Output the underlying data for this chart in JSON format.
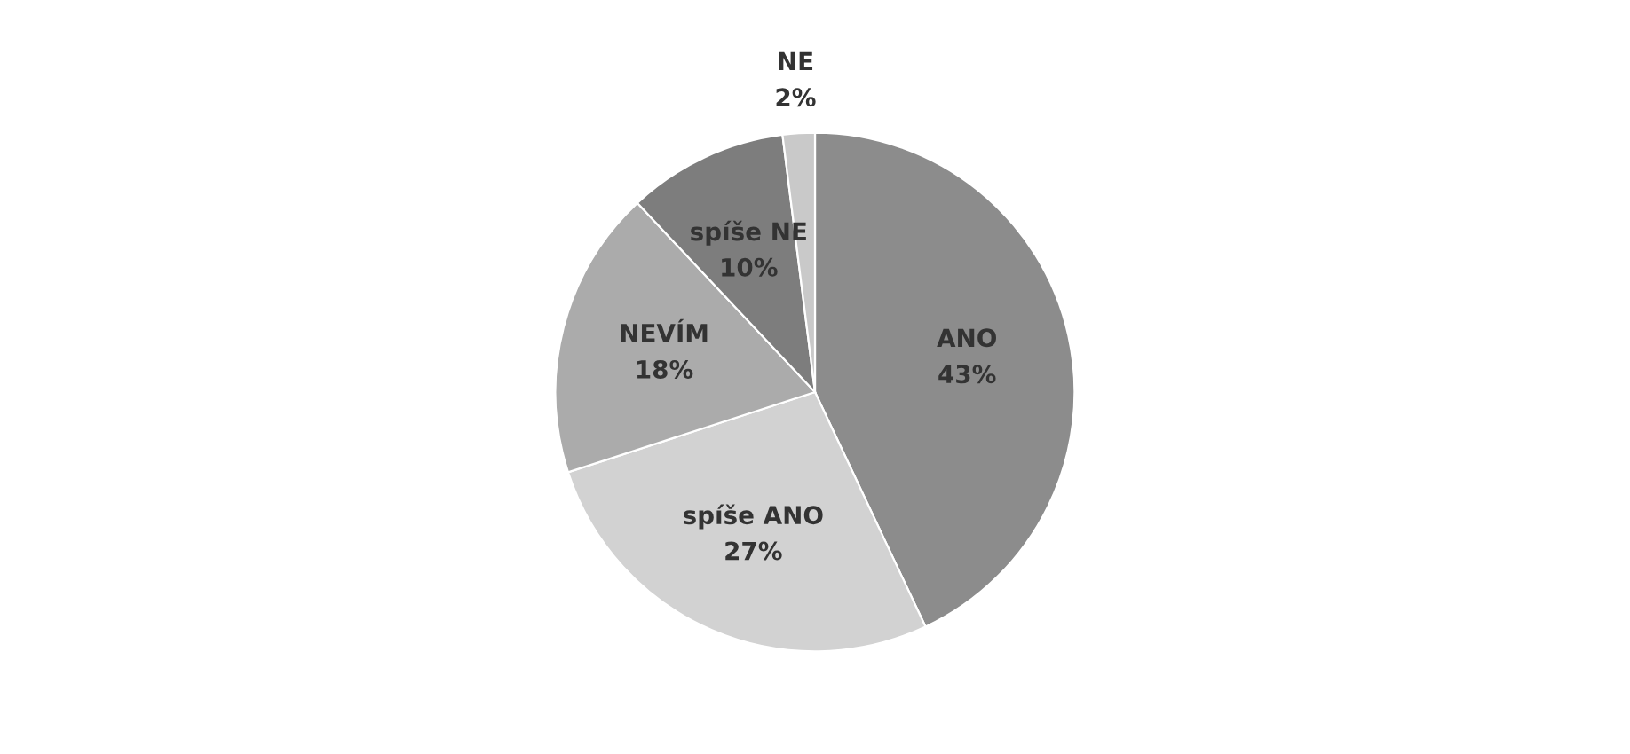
{
  "chart_data": {
    "type": "pie",
    "categories": [
      "ANO",
      "spíše ANO",
      "NEVÍM",
      "spíše NE",
      "NE"
    ],
    "values": [
      43,
      27,
      18,
      10,
      2
    ],
    "value_labels": [
      "43%",
      "27%",
      "18%",
      "10%",
      "2%"
    ],
    "colors": [
      "#8c8c8c",
      "#d2d2d2",
      "#ababab",
      "#7d7d7d",
      "#c9c9c9"
    ],
    "legend": false
  }
}
